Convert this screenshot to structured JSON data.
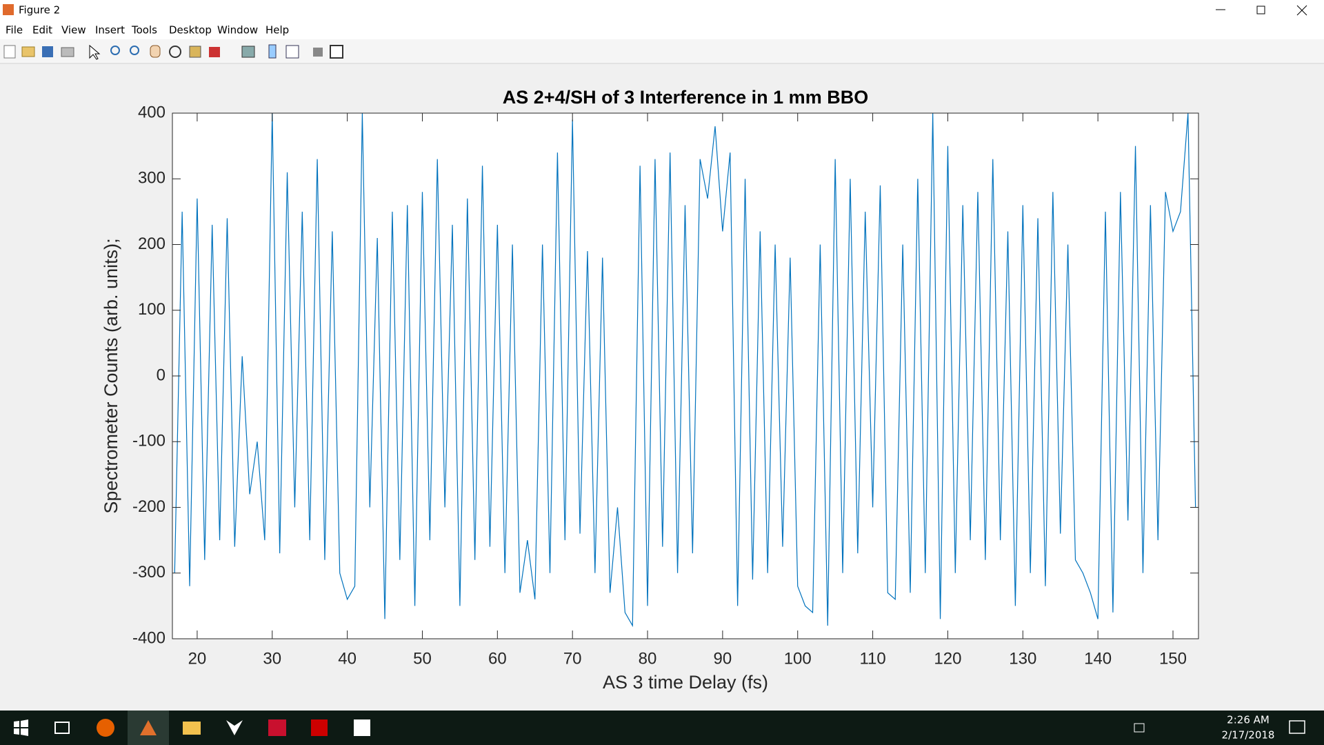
{
  "window": {
    "title": "Figure 2"
  },
  "menu": [
    "File",
    "Edit",
    "View",
    "Insert",
    "Tools",
    "Desktop",
    "Window",
    "Help"
  ],
  "taskbar": {
    "time": "2:26 AM",
    "date": "2/17/2018"
  },
  "chart_data": {
    "type": "line",
    "title": "AS 2+4/SH of 3 Interference in 1 mm BBO",
    "x_label": "AS 3 time Delay (fs)",
    "y_label": "Spectrometer Counts (arb. units);",
    "color": "#0072bd",
    "xlim": [
      16.7,
      153.4
    ],
    "ylim": [
      -400,
      400
    ],
    "xticks": [
      20,
      30,
      40,
      50,
      60,
      70,
      80,
      90,
      100,
      110,
      120,
      130,
      140,
      150
    ],
    "yticks": [
      -400,
      -300,
      -200,
      -100,
      0,
      100,
      200,
      300,
      400
    ],
    "x": [
      17,
      18,
      19,
      20,
      21,
      22,
      23,
      24,
      25,
      26,
      27,
      28,
      29,
      30,
      31,
      32,
      33,
      34,
      35,
      36,
      37,
      38,
      39,
      40,
      41,
      42,
      43,
      44,
      45,
      46,
      47,
      48,
      49,
      50,
      51,
      52,
      53,
      54,
      55,
      56,
      57,
      58,
      59,
      60,
      61,
      62,
      63,
      64,
      65,
      66,
      67,
      68,
      69,
      70,
      71,
      72,
      73,
      74,
      75,
      76,
      77,
      78,
      79,
      80,
      81,
      82,
      83,
      84,
      85,
      86,
      87,
      88,
      89,
      90,
      91,
      92,
      93,
      94,
      95,
      96,
      97,
      98,
      99,
      100,
      101,
      102,
      103,
      104,
      105,
      106,
      107,
      108,
      109,
      110,
      111,
      112,
      113,
      114,
      115,
      116,
      117,
      118,
      119,
      120,
      121,
      122,
      123,
      124,
      125,
      126,
      127,
      128,
      129,
      130,
      131,
      132,
      133,
      134,
      135,
      136,
      137,
      138,
      139,
      140,
      141,
      142,
      143,
      144,
      145,
      146,
      147,
      148,
      149,
      150,
      151,
      152,
      153
    ],
    "values": [
      -300,
      250,
      -320,
      270,
      -280,
      230,
      -250,
      240,
      -260,
      30,
      -180,
      -100,
      -250,
      400,
      -270,
      310,
      -200,
      250,
      -250,
      330,
      -280,
      220,
      -300,
      -340,
      -320,
      400,
      -200,
      210,
      -370,
      250,
      -280,
      260,
      -350,
      280,
      -250,
      330,
      -200,
      230,
      -350,
      270,
      -280,
      320,
      -260,
      230,
      -300,
      200,
      -330,
      -250,
      -340,
      200,
      -300,
      340,
      -250,
      390,
      -240,
      190,
      -300,
      180,
      -330,
      -200,
      -360,
      -380,
      320,
      -350,
      330,
      -260,
      340,
      -300,
      260,
      -270,
      330,
      270,
      380,
      220,
      340,
      -350,
      300,
      -310,
      220,
      -300,
      200,
      -260,
      180,
      -320,
      -350,
      -360,
      200,
      -380,
      330,
      -300,
      300,
      -270,
      250,
      -200,
      290,
      -330,
      -340,
      200,
      -330,
      300,
      -300,
      400,
      -370,
      350,
      -300,
      260,
      -250,
      280,
      -280,
      330,
      -250,
      220,
      -350,
      260,
      -300,
      240,
      -320,
      280,
      -240,
      200,
      -280,
      -300,
      -330,
      -370,
      250,
      -360,
      280,
      -220,
      350,
      -300,
      260,
      -250,
      280,
      220,
      250,
      400,
      -200
    ]
  }
}
